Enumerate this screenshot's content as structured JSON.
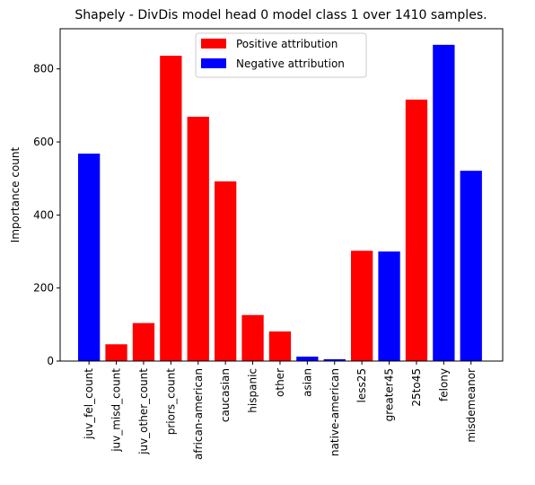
{
  "chart_data": {
    "type": "bar",
    "title": "Shapely - DivDis model head 0 model class 1 over 1410 samples.",
    "xlabel": "",
    "ylabel": "Importance count",
    "ylim": [
      0,
      910
    ],
    "yticks": [
      0,
      200,
      400,
      600,
      800
    ],
    "grid": false,
    "legend_position": "top-center",
    "legend": [
      {
        "label": "Positive attribution",
        "color": "#ff0000"
      },
      {
        "label": "Negative attribution",
        "color": "#0000ff"
      }
    ],
    "categories": [
      "juv_fel_count",
      "juv_misd_count",
      "juv_other_count",
      "priors_count",
      "african-american",
      "caucasian",
      "hispanic",
      "other",
      "asian",
      "native-american",
      "less25",
      "greater45",
      "25to45",
      "felony",
      "misdemeanor"
    ],
    "values": [
      568,
      46,
      104,
      836,
      669,
      492,
      126,
      81,
      12,
      5,
      302,
      300,
      716,
      866,
      521
    ],
    "colors": [
      "#0000ff",
      "#ff0000",
      "#ff0000",
      "#ff0000",
      "#ff0000",
      "#ff0000",
      "#ff0000",
      "#ff0000",
      "#0000ff",
      "#0000ff",
      "#ff0000",
      "#0000ff",
      "#ff0000",
      "#0000ff",
      "#0000ff"
    ]
  }
}
